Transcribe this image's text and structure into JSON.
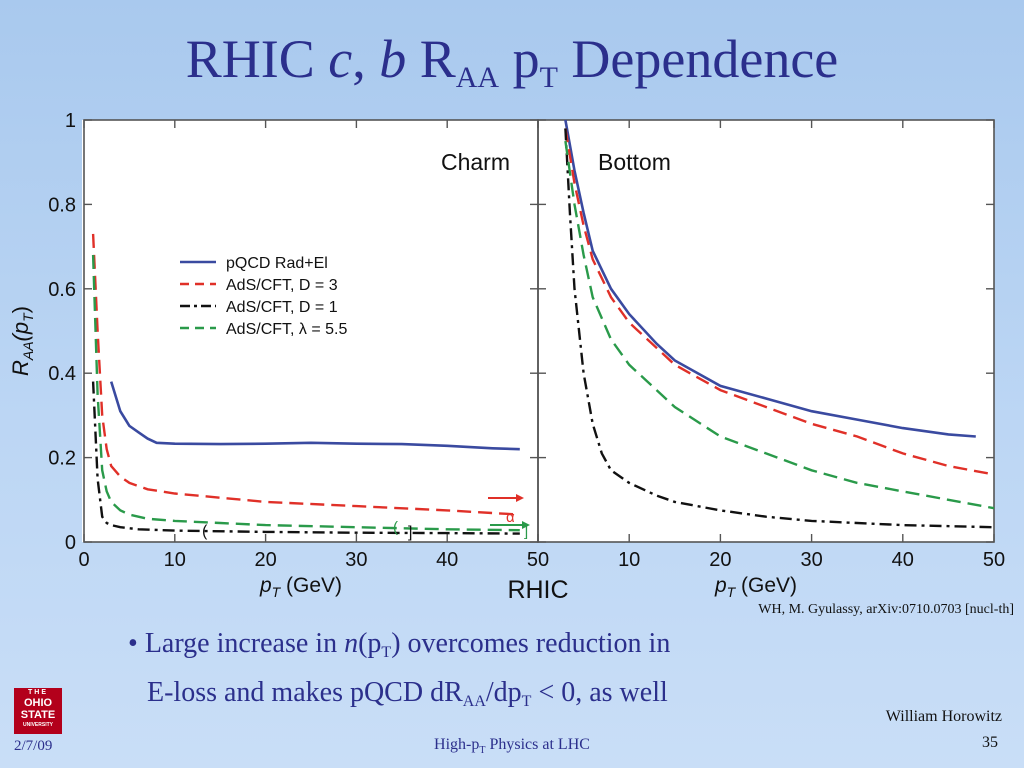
{
  "slide": {
    "title_main": "RHIC ",
    "title_c": "c",
    "title_sep": ", ",
    "title_b": "b",
    "title_raa": " R",
    "title_raa_sub": "AA",
    "title_p": " p",
    "title_p_sub": "T",
    "title_rest": " Dependence",
    "citation": "WH, M. Gyulassy, arXiv:0710.0703 [nucl-th]",
    "bullet_marker": "•",
    "bullet_1a": "Large increase in ",
    "bullet_1n": "n",
    "bullet_1b": "(p",
    "bullet_1sub": "T",
    "bullet_1c": ") overcomes reduction in",
    "bullet_2a": "E-loss and makes pQCD dR",
    "bullet_2sub": "AA",
    "bullet_2b": "/dp",
    "bullet_2sub2": "T",
    "bullet_2c": " < 0, as well",
    "logo_line1": "THE",
    "logo_line2": "OHIO",
    "logo_line3": "STATE",
    "logo_line4": "UNIVERSITY",
    "date": "2/7/09",
    "footer_a": "High-p",
    "footer_sub": "T",
    "footer_b": " Physics at LHC",
    "author": "William Horowitz",
    "page": "35"
  },
  "chart_data": [
    {
      "type": "line",
      "panel_label": "Charm",
      "ylabel_prefix": "R",
      "ylabel_sub": "AA",
      "ylabel_arg": "(p",
      "ylabel_arg_sub": "T",
      "ylabel_close": ")",
      "xlabel_p": "p",
      "xlabel_sub": "T",
      "xlabel_unit": " (GeV)",
      "xlim": [
        0,
        50
      ],
      "ylim": [
        0,
        1
      ],
      "xticks": [
        "0",
        "10",
        "20",
        "30",
        "40",
        "50"
      ],
      "yticks": [
        "0",
        "0.2",
        "0.4",
        "0.6",
        "0.8",
        "1"
      ],
      "bottom_label": "RHIC",
      "colors": {
        "pqcd": "#3a4aa0",
        "ads3": "#e03028",
        "ads1": "#111111",
        "lambda": "#2a9a4a"
      },
      "legend": [
        {
          "key": "pqcd",
          "label": "pQCD Rad+El",
          "style": "solid"
        },
        {
          "key": "ads3",
          "label": "AdS/CFT, D = 3",
          "style": "dashed"
        },
        {
          "key": "ads1",
          "label": "AdS/CFT, D = 1",
          "style": "dashdot"
        },
        {
          "key": "lambda",
          "label": "AdS/CFT, λ = 5.5",
          "style": "dashed"
        }
      ],
      "series": [
        {
          "name": "pQCD Rad+El",
          "key": "pqcd",
          "x": [
            3,
            4,
            5,
            6,
            7,
            8,
            10,
            15,
            20,
            25,
            30,
            35,
            40,
            45,
            48
          ],
          "y": [
            0.38,
            0.31,
            0.275,
            0.26,
            0.245,
            0.235,
            0.233,
            0.232,
            0.233,
            0.235,
            0.233,
            0.232,
            0.228,
            0.222,
            0.22
          ]
        },
        {
          "name": "AdS/CFT, D = 3",
          "key": "ads3",
          "x": [
            1,
            1.5,
            2,
            2.5,
            3,
            4,
            5,
            7,
            10,
            15,
            20,
            30,
            40,
            48
          ],
          "y": [
            0.73,
            0.5,
            0.3,
            0.22,
            0.18,
            0.155,
            0.14,
            0.125,
            0.115,
            0.105,
            0.095,
            0.085,
            0.075,
            0.065
          ]
        },
        {
          "name": "AdS/CFT, D = 1",
          "key": "ads1",
          "x": [
            1,
            1.5,
            2,
            2.5,
            3,
            4,
            6,
            10,
            20,
            30,
            40,
            48
          ],
          "y": [
            0.38,
            0.15,
            0.06,
            0.045,
            0.04,
            0.035,
            0.03,
            0.027,
            0.024,
            0.022,
            0.021,
            0.02
          ]
        },
        {
          "name": "AdS/CFT, λ = 5.5",
          "key": "lambda",
          "x": [
            1,
            1.5,
            2,
            2.5,
            3,
            4,
            5,
            7,
            10,
            15,
            20,
            30,
            40,
            48
          ],
          "y": [
            0.68,
            0.35,
            0.17,
            0.12,
            0.095,
            0.075,
            0.065,
            0.055,
            0.05,
            0.045,
            0.04,
            0.035,
            0.03,
            0.028
          ]
        }
      ],
      "annotations": {
        "arrow_top_label": "",
        "markers": [
          "(",
          "]",
          "(",
          "]",
          "α"
        ]
      }
    },
    {
      "type": "line",
      "panel_label": "Bottom",
      "xlabel_p": "p",
      "xlabel_sub": "T",
      "xlabel_unit": " (GeV)",
      "xlim": [
        0,
        50
      ],
      "ylim": [
        0,
        1
      ],
      "xticks": [
        "10",
        "20",
        "30",
        "40",
        "50"
      ],
      "series": [
        {
          "name": "pQCD Rad+El",
          "key": "pqcd",
          "x": [
            3,
            4,
            5,
            6,
            8,
            10,
            13,
            15,
            20,
            25,
            30,
            35,
            40,
            45,
            48
          ],
          "y": [
            1.0,
            0.88,
            0.78,
            0.69,
            0.6,
            0.54,
            0.47,
            0.43,
            0.37,
            0.34,
            0.31,
            0.29,
            0.27,
            0.255,
            0.25
          ]
        },
        {
          "name": "AdS/CFT, D = 3",
          "key": "ads3",
          "x": [
            3,
            4,
            5,
            6,
            8,
            10,
            13,
            15,
            20,
            25,
            30,
            35,
            40,
            45,
            50
          ],
          "y": [
            0.98,
            0.85,
            0.75,
            0.67,
            0.58,
            0.52,
            0.46,
            0.42,
            0.36,
            0.32,
            0.28,
            0.25,
            0.21,
            0.18,
            0.16
          ]
        },
        {
          "name": "AdS/CFT, D = 1",
          "key": "ads1",
          "x": [
            3,
            3.5,
            4,
            5,
            6,
            7,
            8,
            10,
            13,
            15,
            20,
            25,
            30,
            40,
            50
          ],
          "y": [
            0.98,
            0.78,
            0.6,
            0.4,
            0.28,
            0.21,
            0.17,
            0.14,
            0.11,
            0.095,
            0.075,
            0.06,
            0.05,
            0.04,
            0.035
          ]
        },
        {
          "name": "AdS/CFT, λ = 5.5",
          "key": "lambda",
          "x": [
            3,
            4,
            5,
            6,
            8,
            10,
            13,
            15,
            20,
            25,
            30,
            35,
            40,
            45,
            50
          ],
          "y": [
            0.95,
            0.8,
            0.68,
            0.58,
            0.48,
            0.42,
            0.36,
            0.32,
            0.25,
            0.21,
            0.17,
            0.14,
            0.12,
            0.1,
            0.08
          ]
        }
      ]
    }
  ]
}
